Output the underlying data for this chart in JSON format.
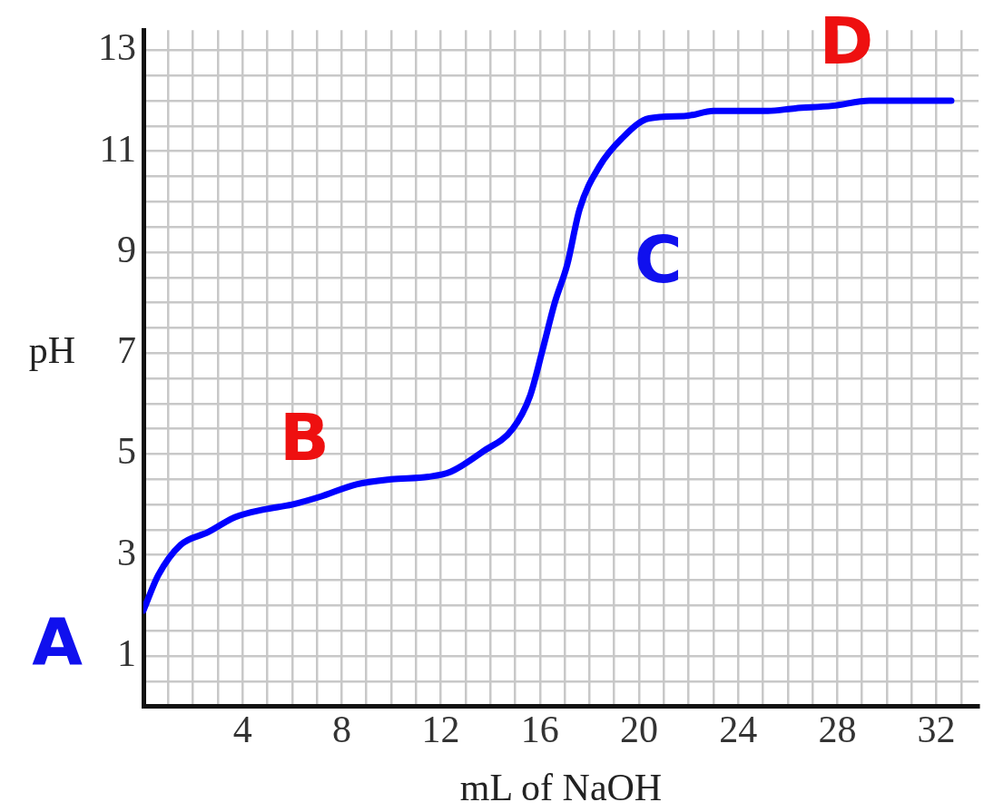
{
  "chart_data": {
    "type": "line",
    "xlabel": "mL of NaOH",
    "ylabel": "pH",
    "x": [
      0,
      0.6,
      1.5,
      2.6,
      3.7,
      4.85,
      6,
      7.1,
      8.6,
      10,
      11.5,
      12.4,
      13.7,
      14.9,
      15.6,
      16.1,
      16.6,
      17.1,
      17.6,
      18.4,
      19.3,
      20.4,
      21.9,
      23,
      25.2,
      26.3,
      27.8,
      29.3,
      32.6
    ],
    "series": [
      {
        "color": "#0000ff",
        "values": [
          1.9,
          2.6,
          3.2,
          3.45,
          3.75,
          3.9,
          4.0,
          4.15,
          4.4,
          4.5,
          4.55,
          4.65,
          5.05,
          5.5,
          6.15,
          7.05,
          8.0,
          8.75,
          9.85,
          10.7,
          11.25,
          11.65,
          11.7,
          11.8,
          11.8,
          11.85,
          11.9,
          12.0,
          12.0
        ]
      }
    ],
    "xlim": [
      0,
      33.7
    ],
    "ylim": [
      0,
      13.4
    ],
    "xticks": [
      {
        "value": 1,
        "label": null
      },
      {
        "value": 2,
        "label": null
      },
      {
        "value": 3,
        "label": null
      },
      4,
      {
        "value": 5,
        "label": null
      },
      {
        "value": 6,
        "label": null
      },
      {
        "value": 7,
        "label": null
      },
      8,
      {
        "value": 9,
        "label": null
      },
      {
        "value": 10,
        "label": null
      },
      {
        "value": 11,
        "label": null
      },
      12,
      {
        "value": 13,
        "label": null
      },
      {
        "value": 14,
        "label": null
      },
      {
        "value": 15,
        "label": null
      },
      16,
      {
        "value": 17,
        "label": null
      },
      {
        "value": 18,
        "label": null
      },
      {
        "value": 19,
        "label": null
      },
      20,
      {
        "value": 21,
        "label": null
      },
      {
        "value": 22,
        "label": null
      },
      {
        "value": 23,
        "label": null
      },
      24,
      {
        "value": 25,
        "label": null
      },
      {
        "value": 26,
        "label": null
      },
      {
        "value": 27,
        "label": null
      },
      28,
      {
        "value": 29,
        "label": null
      },
      {
        "value": 30,
        "label": null
      },
      {
        "value": 31,
        "label": null
      },
      32,
      {
        "value": 33,
        "label": null
      }
    ],
    "yticks": [
      {
        "value": 0.5,
        "label": null
      },
      1,
      {
        "value": 1.5,
        "label": null
      },
      {
        "value": 2,
        "label": null
      },
      {
        "value": 2.5,
        "label": null
      },
      3,
      {
        "value": 3.5,
        "label": null
      },
      {
        "value": 4,
        "label": null
      },
      {
        "value": 4.5,
        "label": null
      },
      5,
      {
        "value": 5.5,
        "label": null
      },
      {
        "value": 6,
        "label": null
      },
      {
        "value": 6.5,
        "label": null
      },
      7,
      {
        "value": 7.5,
        "label": null
      },
      {
        "value": 8,
        "label": null
      },
      {
        "value": 8.5,
        "label": null
      },
      9,
      {
        "value": 9.5,
        "label": null
      },
      {
        "value": 10,
        "label": null
      },
      {
        "value": 10.5,
        "label": null
      },
      11,
      {
        "value": 11.5,
        "label": null
      },
      {
        "value": 12,
        "label": null
      },
      {
        "value": 12.5,
        "label": null
      },
      13
    ],
    "grid": true,
    "marker": "none",
    "line_style": "solid",
    "annotations": [
      {
        "text": "A",
        "x": 0,
        "y": 1.9
      },
      {
        "text": "B",
        "x": 6.5,
        "y": 4.1
      },
      {
        "text": "C",
        "x": 17.3,
        "y": 8.75
      },
      {
        "text": "D",
        "x": 28,
        "y": 11.9
      }
    ]
  }
}
